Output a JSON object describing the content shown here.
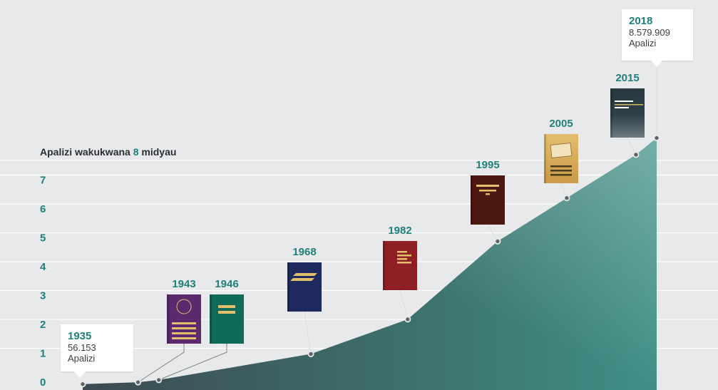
{
  "chart_data": {
    "type": "area",
    "title_parts": [
      "Apalizi wakukwana ",
      "8",
      " midyau"
    ],
    "ylim": [
      0,
      8
    ],
    "yticks": [
      "0",
      "1",
      "2",
      "3",
      "4",
      "5",
      "6",
      "7"
    ],
    "x": [
      1935,
      1943,
      1946,
      1968,
      1982,
      1995,
      2005,
      2015,
      2018
    ],
    "values": [
      0.056153,
      0.12,
      0.2,
      1.1,
      2.3,
      5.0,
      6.5,
      8.0,
      8.579909
    ],
    "milestones": [
      {
        "year": "1935",
        "cover": "none"
      },
      {
        "year": "1943",
        "cover": "purple"
      },
      {
        "year": "1946",
        "cover": "green"
      },
      {
        "year": "1968",
        "cover": "navy"
      },
      {
        "year": "1982",
        "cover": "red"
      },
      {
        "year": "1995",
        "cover": "maroon"
      },
      {
        "year": "2005",
        "cover": "gold"
      },
      {
        "year": "2015",
        "cover": "dark-teal"
      },
      {
        "year": "2018",
        "cover": "none"
      }
    ],
    "callouts": {
      "start": {
        "year": "1935",
        "value": "56.153",
        "unit": "Apalizi"
      },
      "end": {
        "year": "2018",
        "value": "8.579.909",
        "unit": "Apalizi"
      }
    },
    "colors": {
      "area_left": "#3d4a52",
      "area_right": "#3f8f86",
      "accent": "#1f7f7a",
      "purple": "#5b2a6e",
      "green": "#0f6b57",
      "navy": "#1e2a5e",
      "red": "#8e1f24",
      "maroon": "#4e1812",
      "gold": "#d6ad5e",
      "dark_teal": "#27383f"
    }
  }
}
